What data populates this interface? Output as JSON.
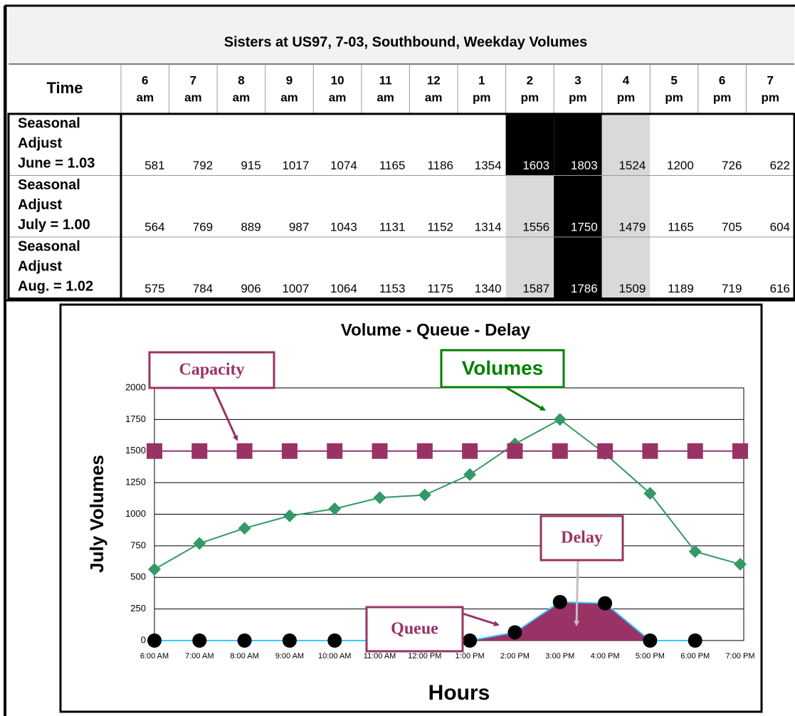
{
  "table": {
    "title": "Sisters at US97, 7-03, Southbound, Weekday  Volumes",
    "first_header": "Time",
    "headers": [
      [
        "6",
        "am"
      ],
      [
        "7",
        "am"
      ],
      [
        "8",
        "am"
      ],
      [
        "9",
        "am"
      ],
      [
        "10",
        "am"
      ],
      [
        "11",
        "am"
      ],
      [
        "12",
        "am"
      ],
      [
        "1",
        "pm"
      ],
      [
        "2",
        "pm"
      ],
      [
        "3",
        "pm"
      ],
      [
        "4",
        "pm"
      ],
      [
        "5",
        "pm"
      ],
      [
        "6",
        "pm"
      ],
      [
        "7",
        "pm"
      ]
    ],
    "rows": [
      {
        "label": [
          "Seasonal",
          "Adjust",
          "June = 1.03"
        ],
        "values": [
          581,
          792,
          915,
          1017,
          1074,
          1165,
          1186,
          1354,
          1603,
          1803,
          1524,
          1200,
          726,
          622
        ],
        "fills": {
          "8": "#000000",
          "9": "#000000",
          "10": "#d9d9d9"
        }
      },
      {
        "label": [
          "Seasonal",
          "Adjust",
          "July = 1.00"
        ],
        "values": [
          564,
          769,
          889,
          987,
          1043,
          1131,
          1152,
          1314,
          1556,
          1750,
          1479,
          1165,
          705,
          604
        ],
        "fills": {
          "8": "#d9d9d9",
          "9": "#000000",
          "10": "#d9d9d9"
        }
      },
      {
        "label": [
          "Seasonal",
          "Adjust",
          "Aug.  = 1.02"
        ],
        "values": [
          575,
          784,
          906,
          1007,
          1064,
          1153,
          1175,
          1340,
          1587,
          1786,
          1509,
          1189,
          719,
          616
        ],
        "fills": {
          "8": "#d9d9d9",
          "9": "#000000",
          "10": "#d9d9d9"
        }
      }
    ]
  },
  "chart_data": {
    "type": "line",
    "title": "Volume - Queue - Delay",
    "y_label": "July Volumes",
    "x_label": "Hours",
    "categories": [
      "6:00 AM",
      "7:00 AM",
      "8:00 AM",
      "9:00 AM",
      "10:00 AM",
      "11:00 AM",
      "12:00 PM",
      "1:00 PM",
      "2:00 PM",
      "3:00 PM",
      "4:00 PM",
      "5:00 PM",
      "6:00 PM",
      "7:00 PM"
    ],
    "series": [
      {
        "name": "Volumes",
        "color": "#339966",
        "marker": "diamond",
        "marker_color": "#339966",
        "values": [
          564,
          769,
          889,
          987,
          1043,
          1131,
          1152,
          1314,
          1556,
          1750,
          1479,
          1165,
          705,
          604
        ]
      },
      {
        "name": "Capacity",
        "color": "#993366",
        "marker": "square",
        "marker_color": "#993366",
        "values": [
          1500,
          1500,
          1500,
          1500,
          1500,
          1500,
          1500,
          1500,
          1500,
          1500,
          1500,
          1500,
          1500,
          1500
        ]
      },
      {
        "name": "Queue",
        "color": "#33ccff",
        "marker": "circle",
        "marker_color": "#000000",
        "fill": "#993366",
        "values": [
          0,
          0,
          0,
          0,
          0,
          0,
          0,
          0,
          65,
          305,
          295,
          0,
          0,
          null
        ]
      }
    ],
    "annotations": [
      "Capacity",
      "Volumes",
      "Queue",
      "Delay"
    ],
    "ylim": [
      0,
      2000
    ],
    "yticks": [
      0,
      250,
      500,
      750,
      1000,
      1250,
      1500,
      1750,
      2000
    ],
    "grid": true
  }
}
